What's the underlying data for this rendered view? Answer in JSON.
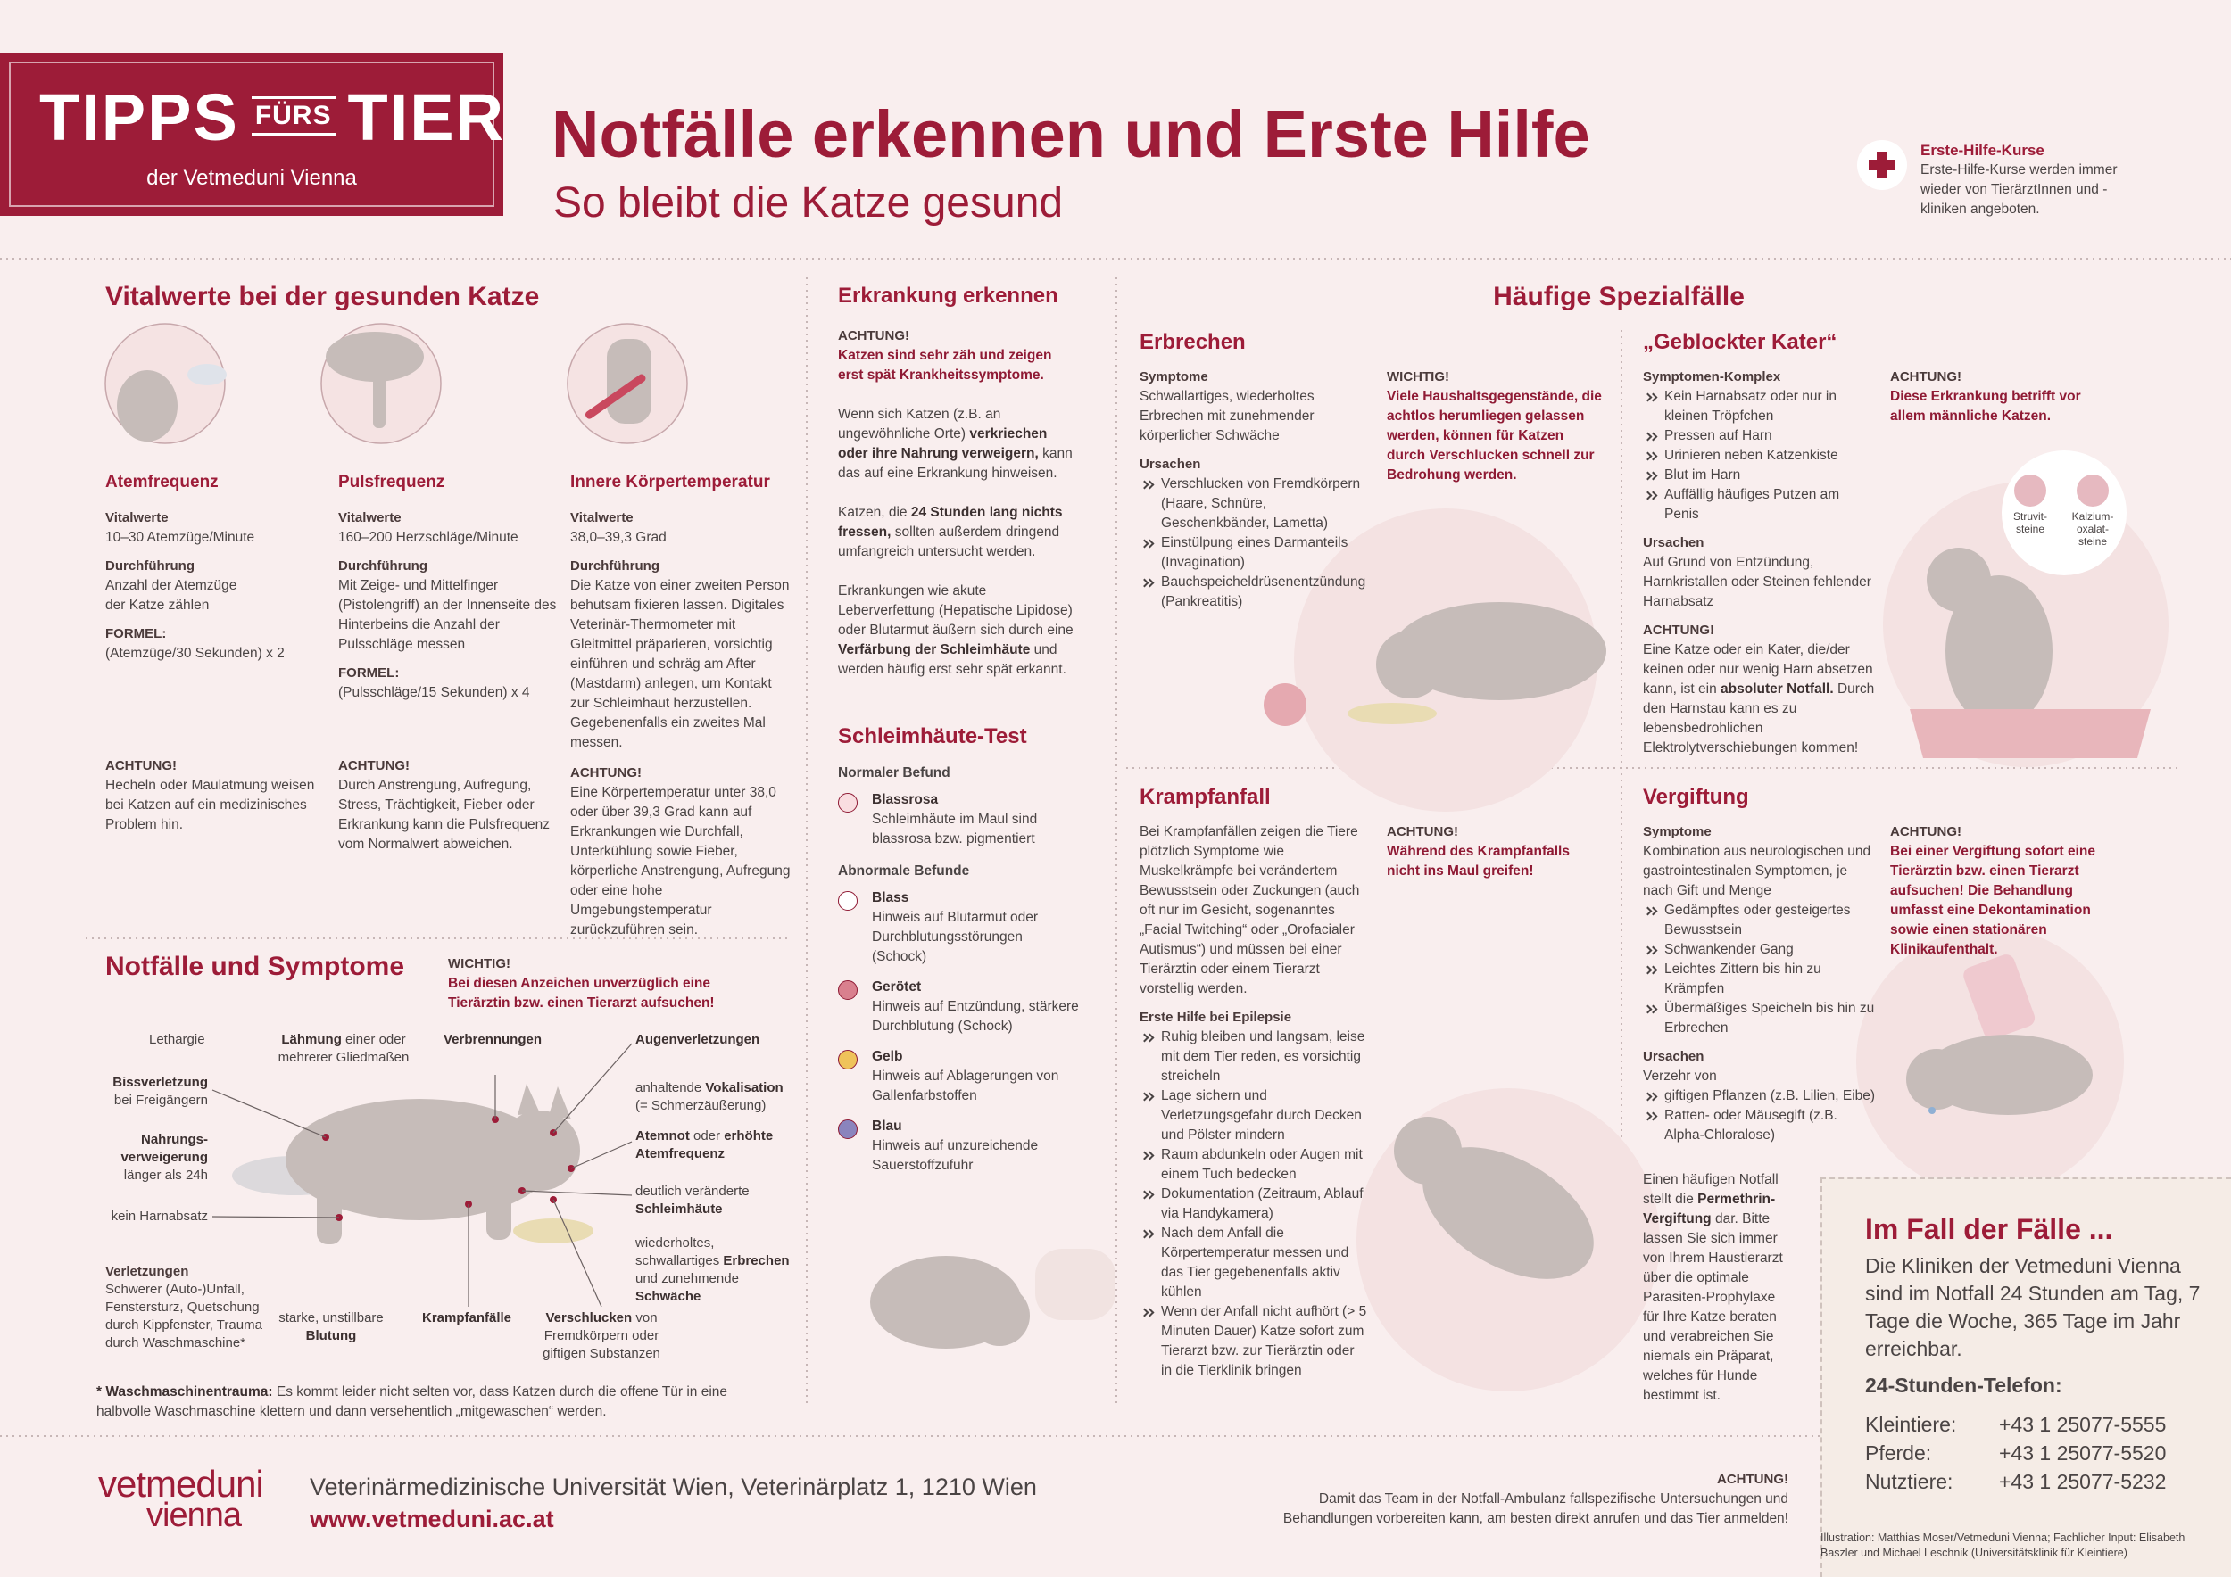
{
  "header": {
    "brand": [
      "TIPPS",
      "FÜRS",
      "TIER"
    ],
    "brand_sub": "der Vetmeduni Vienna",
    "title": "Notfälle erkennen und Erste Hilfe",
    "subtitle": "So bleibt die Katze gesund",
    "course": {
      "title": "Erste-Hilfe-Kurse",
      "text": "Erste-Hilfe-Kurse werden immer wieder von TierärztInnen und -kliniken angeboten."
    }
  },
  "vital": {
    "heading": "Vitalwerte bei der gesunden Katze",
    "cols": [
      {
        "title": "Atemfrequenz",
        "items": [
          {
            "h": "Vitalwerte",
            "t": "10–30 Atemzüge/Minute"
          },
          {
            "h": "Durchführung",
            "t": "Anzahl der Atemzüge\nder Katze zählen"
          },
          {
            "h": "FORMEL:",
            "t": "(Atemzüge/30 Sekunden) x 2"
          }
        ],
        "warning": {
          "h": "ACHTUNG!",
          "t": "Hecheln oder Maulatmung weisen bei Katzen auf ein medizinisches Problem hin."
        }
      },
      {
        "title": "Pulsfrequenz",
        "items": [
          {
            "h": "Vitalwerte",
            "t": "160–200 Herzschläge/Minute"
          },
          {
            "h": "Durchführung",
            "t": "Mit Zeige- und Mittelfinger (Pistolengriff) an der Innenseite des Hinterbeins die Anzahl der Pulsschläge messen"
          },
          {
            "h": "FORMEL:",
            "t": "(Pulsschläge/15 Sekunden) x 4"
          }
        ],
        "warning": {
          "h": "ACHTUNG!",
          "t": "Durch Anstrengung, Aufregung, Stress, Trächtigkeit, Fieber oder Erkrankung kann die Pulsfrequenz vom Normalwert abweichen."
        }
      },
      {
        "title": "Innere Körpertemperatur",
        "items": [
          {
            "h": "Vitalwerte",
            "t": "38,0–39,3  Grad"
          },
          {
            "h": "Durchführung",
            "t": "Die Katze von einer zweiten Person behutsam fixieren lassen. Digitales Veterinär-Thermometer mit Gleitmittel präparieren, vorsichtig einführen und schräg am After (Mastdarm) anlegen, um Kontakt zur Schleimhaut herzustellen. Gegebenenfalls ein zweites Mal messen."
          }
        ],
        "warning": {
          "h": "ACHTUNG!",
          "t": "Eine Körpertemperatur unter 38,0 oder über 39,3 Grad kann auf Erkrankungen wie Durchfall, Unterkühlung sowie Fieber, körperliche Anstrengung, Aufregung oder eine hohe Umgebungstemperatur zurückzuführen sein."
        }
      }
    ]
  },
  "emergency": {
    "heading": "Notfälle und Symptome",
    "important": {
      "h": "WICHTIG!",
      "w": "Bei diesen Anzeichen unverzüglich eine Tierärztin bzw. einen Tierarzt aufsuchen!"
    },
    "labels": [
      {
        "p": [
          {
            "n": "Lethargie"
          }
        ]
      },
      {
        "p": [
          {
            "s": "Lähmung"
          },
          {
            "n": " einer oder mehrerer Gliedmaßen"
          }
        ]
      },
      {
        "p": [
          {
            "s": "Verbrennungen"
          }
        ]
      },
      {
        "p": [
          {
            "s": "Augenverletzungen"
          }
        ]
      },
      {
        "p": [
          {
            "s": "Bissverletzung"
          },
          {
            "n": " bei Freigängern"
          }
        ]
      },
      {
        "p": [
          {
            "n": "anhaltende "
          },
          {
            "s": "Vokalisation"
          },
          {
            "n": " (= Schmerzäußerung)"
          }
        ]
      },
      {
        "p": [
          {
            "s": "Nahrungs­verweigerung"
          },
          {
            "n": " länger als 24h"
          }
        ]
      },
      {
        "p": [
          {
            "s": "Atemnot"
          },
          {
            "n": " oder "
          },
          {
            "s": "erhöhte Atemfrequenz"
          }
        ]
      },
      {
        "p": [
          {
            "n": "deutlich veränderte "
          },
          {
            "s": "Schleimhäute"
          }
        ]
      },
      {
        "p": [
          {
            "n": "kein Harnabsatz"
          }
        ]
      },
      {
        "p": [
          {
            "n": "wiederholtes, schwallartiges "
          },
          {
            "s": "Erbrechen"
          },
          {
            "n": " und zunehmende "
          },
          {
            "s": "Schwäche"
          }
        ]
      },
      {
        "h": "Verletzungen",
        "t": "Schwerer (Auto-)Unfall, Fenstersturz, Quetschung durch Kippfenster, Trauma durch Waschmaschine*"
      },
      {
        "p": [
          {
            "n": "starke, unstillbare "
          },
          {
            "s": "Blutung"
          }
        ]
      },
      {
        "p": [
          {
            "s": "Krampfanfälle"
          }
        ]
      },
      {
        "p": [
          {
            "s": "Verschlucken"
          },
          {
            "n": " von Fremdkörpern oder giftigen Substanzen"
          }
        ]
      }
    ],
    "footnote": {
      "p": [
        {
          "s": "* Waschmaschinentrauma:"
        },
        {
          "n": " Es kommt leider nicht selten vor, dass Katzen durch die offene Tür in eine halbvolle Waschmaschine klettern und dann versehentlich „mitgewaschen“ werden."
        }
      ]
    }
  },
  "recognize": {
    "heading": "Erkrankung erkennen",
    "items": [
      {
        "h": "ACHTUNG!",
        "w": "Katzen sind sehr zäh und zeigen erst spät Krankheitssymptome."
      },
      {
        "p": [
          {
            "n": "Wenn sich Katzen (z.B. an ungewöhnliche Orte) "
          },
          {
            "s": "verkriechen oder ihre Nahrung verweigern,"
          },
          {
            "n": " kann das auf eine Erkrankung hinweisen."
          }
        ]
      },
      {
        "p": [
          {
            "n": "Katzen, die "
          },
          {
            "s": "24 Stunden lang nichts fressen,"
          },
          {
            "n": " sollten außerdem dringend umfangreich untersucht werden."
          }
        ]
      },
      {
        "p": [
          {
            "n": "Erkrankungen wie akute Leberverfettung (Hepatische Lipidose) oder Blutarmut äußern sich durch eine "
          },
          {
            "s": "Verfärbung der Schleimhäute"
          },
          {
            "n": " und werden häufig erst sehr spät erkannt."
          }
        ]
      }
    ]
  },
  "mucosa": {
    "heading": "Schleimhäute-Test",
    "normal_label": "Normaler Befund",
    "normal": [
      {
        "name": "Blassrosa",
        "text": "Schleimhäute im Maul sind blassrosa bzw. pigmentiert",
        "color": "#f9dde0"
      }
    ],
    "abnormal_label": "Abnormale Befunde",
    "abnormal": [
      {
        "name": "Blass",
        "text": "Hinweis auf Blutarmut oder Durchblutungsstörungen (Schock)",
        "color": "#ffffff"
      },
      {
        "name": "Gerötet",
        "text": "Hinweis auf Entzündung, stärkere Durchblutung (Schock)",
        "color": "#d9808e"
      },
      {
        "name": "Gelb",
        "text": "Hinweis auf Ablagerungen von Gallenfarbstoffen",
        "color": "#efc35a"
      },
      {
        "name": "Blau",
        "text": "Hinweis auf unzureichende Sauerstoffzufuhr",
        "color": "#8a84bd"
      }
    ]
  },
  "special": {
    "heading": "Häufige Spezialfälle",
    "vomit": {
      "title": "Erbrechen",
      "items": [
        {
          "h": "Symptome",
          "t": "Schwallartiges, wiederholtes Erbrechen mit zunehmender körperlicher Schwäche"
        },
        {
          "h": "Ursachen",
          "b": [
            "Verschlucken von Fremdkörpern (Haare, Schnüre, Geschenkbänder, Lametta)",
            "Einstülpung eines Darmanteils (Invagination)",
            "Bauchspeicheldrüsenentzündung (Pankreatitis)"
          ]
        }
      ],
      "note": {
        "h": "WICHTIG!",
        "w": "Viele Haushaltsgegenstände, die achtlos herumliegen gelassen werden, können für Katzen durch Verschlucken schnell zur Bedrohung werden."
      }
    },
    "blocked": {
      "title": "„Geblockter Kater“",
      "items": [
        {
          "h": "Symptomen-Komplex",
          "b": [
            "Kein Harnabsatz oder nur in kleinen Tröpfchen",
            "Pressen auf Harn",
            "Urinieren neben Katzenkiste",
            "Blut im Harn",
            "Auffällig häufiges Putzen am Penis"
          ]
        },
        {
          "h": "Ursachen",
          "t": "Auf Grund von Entzündung, Harnkristallen oder Steinen fehlender Harnabsatz"
        },
        {
          "h": "ACHTUNG!",
          "p": [
            {
              "n": "Eine Katze oder ein Kater, die/der keinen oder nur wenig Harn absetzen kann, ist ein "
            },
            {
              "s": "absoluter Notfall."
            },
            {
              "n": " Durch den Harnstau kann es zu lebensbedrohlichen Elektrolytverschiebungen kommen!"
            }
          ]
        }
      ],
      "note": {
        "h": "ACHTUNG!",
        "w": "Diese Erkrankung betrifft vor allem männliche Katzen."
      },
      "stones": [
        "Struvit-\nsteine",
        "Kalzium-\noxalat-\nsteine"
      ]
    },
    "seizure": {
      "title": "Krampfanfall",
      "items": [
        {
          "t": "Bei Krampfanfällen zeigen die Tiere plötzlich Symptome wie Muskelkrämpfe bei verändertem Bewusstsein oder Zuckungen (auch oft nur im Gesicht, sogenanntes „Facial Twitching“ oder „Orofacialer Autismus“) und müssen bei einer Tierärztin oder einem Tierarzt vorstellig werden."
        },
        {
          "h": "Erste Hilfe bei Epilepsie",
          "b": [
            "Ruhig bleiben und langsam, leise mit dem Tier reden, es vorsichtig streicheln",
            "Lage sichern und Verletzungsgefahr durch Decken und Pölster mindern",
            "Raum abdunkeln oder Augen mit einem Tuch bedecken",
            "Dokumentation (Zeitraum, Ablauf via Handykamera)",
            "Nach dem Anfall die Körpertemperatur messen und das Tier gegebenenfalls aktiv kühlen",
            "Wenn der Anfall nicht aufhört (> 5 Minuten Dauer) Katze sofort zum Tierarzt bzw. zur Tierärztin oder in die Tierklinik bringen"
          ]
        }
      ],
      "note": {
        "h": "ACHTUNG!",
        "w": "Während des Krampfanfalls nicht ins Maul greifen!"
      }
    },
    "poison": {
      "title": "Vergiftung",
      "items": [
        {
          "h": "Symptome",
          "t": "Kombination aus neurologischen und gastrointestinalen Symptomen, je nach Gift und Menge",
          "b": [
            "Gedämpftes oder gesteigertes Bewusstsein",
            "Schwankender Gang",
            "Leichtes Zittern bis hin zu Krämpfen",
            "Übermäßiges Speicheln bis hin zu Erbrechen"
          ]
        },
        {
          "h": "Ursachen",
          "t": "Verzehr von",
          "b": [
            "giftigen Pflanzen (z.B. Lilien, Eibe)",
            "Ratten- oder Mäusegift (z.B. Alpha-Chloralose)"
          ]
        }
      ],
      "permethrin": {
        "p": [
          {
            "n": "Einen häufigen Notfall stellt die "
          },
          {
            "s": "Permethrin-Vergiftung"
          },
          {
            "n": " dar. Bitte lassen Sie sich immer von Ihrem Haustierarzt über die optimale Parasiten-Prophylaxe für Ihre Katze beraten und verabreichen Sie niemals ein Präparat, welches für Hunde bestimmt ist."
          }
        ]
      },
      "note": {
        "h": "ACHTUNG!",
        "w": "Bei einer Vergiftung sofort eine Tierärztin bzw. einen Tierarzt aufsuchen! Die Behandlung umfasst eine Dekontamination sowie einen stationären Klinikaufenthalt."
      }
    }
  },
  "contact": {
    "title": "Im Fall der Fälle ...",
    "text": "Die Kliniken der Vetmeduni Vienna sind im Notfall 24 Stunden am Tag, 7 Tage die Woche, 365 Tage im Jahr erreichbar.",
    "phone_title": "24-Stunden-Telefon:",
    "phones": [
      {
        "label": "Kleintiere:",
        "number": "+43 1 25077-5555"
      },
      {
        "label": "Pferde:",
        "number": "+43 1 25077-5520"
      },
      {
        "label": "Nutztiere:",
        "number": "+43 1 25077-5232"
      }
    ]
  },
  "footer": {
    "logo": [
      "vetmeduni",
      "vienna"
    ],
    "address": "Veterinärmedizinische Universität Wien, Veterinärplatz 1, 1210 Wien",
    "url": "www.vetmeduni.ac.at",
    "notice": {
      "h": "ACHTUNG!",
      "t": "Damit das Team in der Notfall-Ambulanz fallspezifische Untersuchungen und Behandlungen vorbereiten kann, am besten direkt anrufen und das Tier anmelden!"
    },
    "credits": "Illustration: Matthias Moser/Vetmeduni Vienna; Fachlicher Input: Elisabeth Baszler und Michael Leschnik (Universitätsklinik für Kleintiere)"
  }
}
